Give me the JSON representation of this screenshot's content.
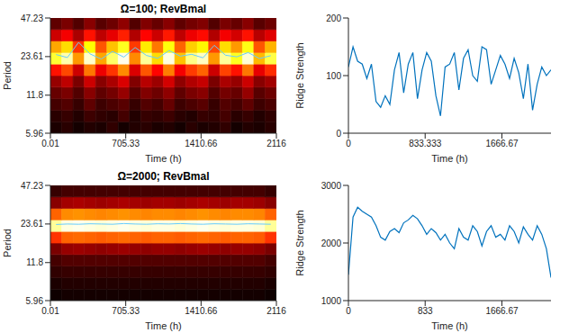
{
  "chart_data": [
    {
      "type": "heatmap",
      "title": "Ω=100; RevBmal",
      "x_label": "Time (h)",
      "y_label": "Period",
      "xlim": [
        0.01,
        2116
      ],
      "xticks": [
        0.01,
        705.33,
        1410.66,
        2116
      ],
      "ylim": [
        5.96,
        47.23
      ],
      "yticks": [
        5.96,
        11.8,
        23.61,
        47.23
      ],
      "log": "y",
      "cells": {
        "x": [
          52.9,
          158.7,
          264.5,
          370.3,
          476.1,
          581.9,
          687.7,
          793.5,
          899.3,
          1005.1,
          1110.9,
          1216.7,
          1322.5,
          1428.3,
          1534.1,
          1639.9,
          1745.7,
          1851.5,
          1957.3,
          2063.1
        ],
        "y": [
          6.61,
          8.13,
          10.0,
          12.3,
          15.1,
          18.6,
          22.9,
          28.2,
          34.6,
          42.6
        ],
        "zlim": [
          0,
          1
        ],
        "z": [
          [
            0.04,
            0.06,
            0.03,
            0.05,
            0.04,
            0.07,
            0.03,
            0.05,
            0.06,
            0.04,
            0.05,
            0.03,
            0.06,
            0.04,
            0.05,
            0.07,
            0.03,
            0.05,
            0.04,
            0.06
          ],
          [
            0.06,
            0.08,
            0.05,
            0.09,
            0.07,
            0.06,
            0.1,
            0.05,
            0.08,
            0.07,
            0.09,
            0.06,
            0.05,
            0.08,
            0.07,
            0.1,
            0.06,
            0.08,
            0.05,
            0.07
          ],
          [
            0.1,
            0.12,
            0.08,
            0.14,
            0.09,
            0.11,
            0.13,
            0.08,
            0.12,
            0.1,
            0.15,
            0.09,
            0.11,
            0.13,
            0.08,
            0.12,
            0.1,
            0.14,
            0.09,
            0.11
          ],
          [
            0.15,
            0.18,
            0.12,
            0.2,
            0.14,
            0.17,
            0.22,
            0.13,
            0.19,
            0.16,
            0.21,
            0.14,
            0.18,
            0.2,
            0.12,
            0.17,
            0.15,
            0.22,
            0.13,
            0.16
          ],
          [
            0.22,
            0.28,
            0.18,
            0.3,
            0.2,
            0.25,
            0.32,
            0.19,
            0.27,
            0.23,
            0.31,
            0.21,
            0.26,
            0.29,
            0.18,
            0.25,
            0.22,
            0.3,
            0.2,
            0.24
          ],
          [
            0.4,
            0.48,
            0.3,
            0.55,
            0.35,
            0.45,
            0.58,
            0.32,
            0.5,
            0.38,
            0.56,
            0.36,
            0.46,
            0.52,
            0.3,
            0.47,
            0.4,
            0.55,
            0.34,
            0.44
          ],
          [
            0.8,
            0.92,
            0.6,
            0.95,
            0.62,
            0.85,
            0.98,
            0.58,
            0.9,
            0.7,
            0.97,
            0.66,
            0.88,
            0.94,
            0.6,
            0.9,
            0.78,
            0.96,
            0.65,
            0.82
          ],
          [
            0.62,
            0.7,
            0.45,
            0.75,
            0.5,
            0.66,
            0.78,
            0.46,
            0.72,
            0.55,
            0.76,
            0.52,
            0.68,
            0.74,
            0.48,
            0.7,
            0.6,
            0.77,
            0.5,
            0.64
          ],
          [
            0.3,
            0.36,
            0.25,
            0.4,
            0.28,
            0.34,
            0.42,
            0.26,
            0.38,
            0.3,
            0.41,
            0.28,
            0.35,
            0.39,
            0.26,
            0.36,
            0.31,
            0.4,
            0.27,
            0.33
          ],
          [
            0.14,
            0.18,
            0.12,
            0.2,
            0.13,
            0.16,
            0.21,
            0.12,
            0.19,
            0.15,
            0.2,
            0.14,
            0.17,
            0.19,
            0.12,
            0.18,
            0.15,
            0.2,
            0.13,
            0.16
          ]
        ]
      },
      "ridge": {
        "color": "#66ccff",
        "x": [
          52.9,
          158.7,
          264.5,
          370.3,
          476.1,
          581.9,
          687.7,
          793.5,
          899.3,
          1005.1,
          1110.9,
          1216.7,
          1322.5,
          1428.3,
          1534.1,
          1639.9,
          1745.7,
          1851.5,
          1957.3,
          2063.1
        ],
        "values": [
          24.5,
          23.2,
          30.5,
          24.8,
          22.6,
          25.9,
          23.4,
          27.8,
          24.1,
          22.9,
          26.3,
          23.8,
          24.6,
          23.1,
          28.9,
          24.2,
          23.5,
          25.4,
          22.8,
          24.0
        ]
      }
    },
    {
      "type": "line",
      "x_label": "Time (h)",
      "y_label": "Ridge Strength",
      "color": "#0072bd",
      "xlim": [
        0,
        2200
      ],
      "xticks": [
        0,
        833.333,
        1666.67
      ],
      "ylim": [
        0,
        200
      ],
      "yticks": [
        0,
        100,
        200
      ],
      "x": [
        0,
        50,
        100,
        150,
        200,
        250,
        300,
        350,
        400,
        450,
        500,
        550,
        600,
        650,
        700,
        750,
        800,
        850,
        900,
        950,
        1000,
        1050,
        1100,
        1150,
        1200,
        1250,
        1300,
        1350,
        1400,
        1450,
        1500,
        1550,
        1600,
        1650,
        1700,
        1750,
        1800,
        1850,
        1900,
        1950,
        2000,
        2050,
        2100,
        2150,
        2200
      ],
      "values": [
        115,
        150,
        125,
        120,
        95,
        120,
        55,
        45,
        65,
        50,
        110,
        140,
        70,
        120,
        140,
        60,
        110,
        140,
        125,
        65,
        30,
        115,
        120,
        140,
        75,
        130,
        145,
        100,
        90,
        150,
        145,
        85,
        110,
        135,
        120,
        95,
        130,
        105,
        60,
        120,
        40,
        85,
        115,
        100,
        110
      ]
    },
    {
      "type": "heatmap",
      "title": "Ω=2000; RevBmal",
      "x_label": "Time (h)",
      "y_label": "Period",
      "xlim": [
        0.01,
        2116
      ],
      "xticks": [
        0.01,
        705.33,
        1410.66,
        2116
      ],
      "ylim": [
        5.96,
        47.23
      ],
      "yticks": [
        5.96,
        11.8,
        23.61,
        47.23
      ],
      "log": "y",
      "cells": {
        "x": [
          52.9,
          158.7,
          264.5,
          370.3,
          476.1,
          581.9,
          687.7,
          793.5,
          899.3,
          1005.1,
          1110.9,
          1216.7,
          1322.5,
          1428.3,
          1534.1,
          1639.9,
          1745.7,
          1851.5,
          1957.3,
          2063.1
        ],
        "y": [
          6.61,
          8.13,
          10.0,
          12.3,
          15.1,
          18.6,
          22.9,
          28.2,
          34.6,
          42.6
        ],
        "zlim": [
          0,
          1
        ],
        "z": [
          [
            0.02,
            0.03,
            0.03,
            0.03,
            0.03,
            0.03,
            0.03,
            0.03,
            0.03,
            0.03,
            0.03,
            0.03,
            0.03,
            0.03,
            0.03,
            0.03,
            0.03,
            0.03,
            0.03,
            0.02
          ],
          [
            0.04,
            0.05,
            0.05,
            0.05,
            0.05,
            0.05,
            0.05,
            0.05,
            0.05,
            0.05,
            0.05,
            0.05,
            0.05,
            0.05,
            0.05,
            0.05,
            0.05,
            0.05,
            0.05,
            0.04
          ],
          [
            0.07,
            0.08,
            0.08,
            0.08,
            0.08,
            0.08,
            0.08,
            0.08,
            0.08,
            0.08,
            0.08,
            0.08,
            0.08,
            0.08,
            0.08,
            0.08,
            0.08,
            0.08,
            0.08,
            0.07
          ],
          [
            0.1,
            0.12,
            0.12,
            0.12,
            0.12,
            0.12,
            0.12,
            0.12,
            0.12,
            0.12,
            0.12,
            0.12,
            0.12,
            0.12,
            0.12,
            0.12,
            0.12,
            0.12,
            0.12,
            0.1
          ],
          [
            0.18,
            0.22,
            0.23,
            0.22,
            0.21,
            0.22,
            0.23,
            0.22,
            0.21,
            0.22,
            0.22,
            0.21,
            0.22,
            0.23,
            0.22,
            0.21,
            0.22,
            0.22,
            0.21,
            0.18
          ],
          [
            0.45,
            0.52,
            0.53,
            0.52,
            0.51,
            0.52,
            0.53,
            0.52,
            0.51,
            0.52,
            0.52,
            0.51,
            0.52,
            0.53,
            0.52,
            0.51,
            0.52,
            0.52,
            0.51,
            0.45
          ],
          [
            0.9,
            0.97,
            0.98,
            0.97,
            0.96,
            0.97,
            0.98,
            0.97,
            0.96,
            0.97,
            0.97,
            0.96,
            0.97,
            0.98,
            0.97,
            0.96,
            0.97,
            0.97,
            0.96,
            0.9
          ],
          [
            0.52,
            0.58,
            0.59,
            0.58,
            0.57,
            0.58,
            0.59,
            0.58,
            0.57,
            0.58,
            0.58,
            0.57,
            0.58,
            0.59,
            0.58,
            0.57,
            0.58,
            0.58,
            0.57,
            0.52
          ],
          [
            0.2,
            0.24,
            0.25,
            0.24,
            0.23,
            0.24,
            0.25,
            0.24,
            0.23,
            0.24,
            0.24,
            0.23,
            0.24,
            0.25,
            0.24,
            0.23,
            0.24,
            0.24,
            0.23,
            0.2
          ],
          [
            0.08,
            0.1,
            0.1,
            0.1,
            0.1,
            0.1,
            0.1,
            0.1,
            0.1,
            0.1,
            0.1,
            0.1,
            0.1,
            0.1,
            0.1,
            0.1,
            0.1,
            0.1,
            0.1,
            0.08
          ]
        ]
      },
      "ridge": {
        "color": "#66ccff",
        "x": [
          52.9,
          158.7,
          264.5,
          370.3,
          476.1,
          581.9,
          687.7,
          793.5,
          899.3,
          1005.1,
          1110.9,
          1216.7,
          1322.5,
          1428.3,
          1534.1,
          1639.9,
          1745.7,
          1851.5,
          1957.3,
          2063.1
        ],
        "values": [
          23.4,
          23.6,
          23.5,
          23.7,
          23.6,
          23.5,
          23.8,
          23.6,
          23.5,
          23.7,
          23.6,
          23.8,
          23.6,
          23.5,
          23.7,
          23.6,
          23.5,
          23.7,
          23.6,
          23.5
        ]
      }
    },
    {
      "type": "line",
      "x_label": "Time (h)",
      "y_label": "Ridge Strength",
      "color": "#0072bd",
      "xlim": [
        0,
        2200
      ],
      "xticks": [
        0,
        {
          "value": 833.333,
          "label": "833"
        },
        1666.67
      ],
      "ylim": [
        1000,
        3000
      ],
      "yticks": [
        1000,
        2000,
        3000
      ],
      "x": [
        0,
        50,
        100,
        150,
        200,
        250,
        300,
        350,
        400,
        450,
        500,
        550,
        600,
        650,
        700,
        750,
        800,
        850,
        900,
        950,
        1000,
        1050,
        1100,
        1150,
        1200,
        1250,
        1300,
        1350,
        1400,
        1450,
        1500,
        1550,
        1600,
        1650,
        1700,
        1750,
        1800,
        1850,
        1900,
        1950,
        2000,
        2050,
        2100,
        2150,
        2200
      ],
      "values": [
        1450,
        2450,
        2620,
        2550,
        2500,
        2450,
        2300,
        2100,
        2050,
        2200,
        2250,
        2180,
        2350,
        2400,
        2480,
        2420,
        2300,
        2150,
        2250,
        2180,
        2050,
        2150,
        2000,
        1900,
        2250,
        2100,
        2050,
        2300,
        2200,
        1950,
        2200,
        2300,
        2100,
        2150,
        2050,
        2300,
        2200,
        2000,
        2280,
        2150,
        2050,
        2300,
        2150,
        1900,
        1400
      ]
    }
  ]
}
